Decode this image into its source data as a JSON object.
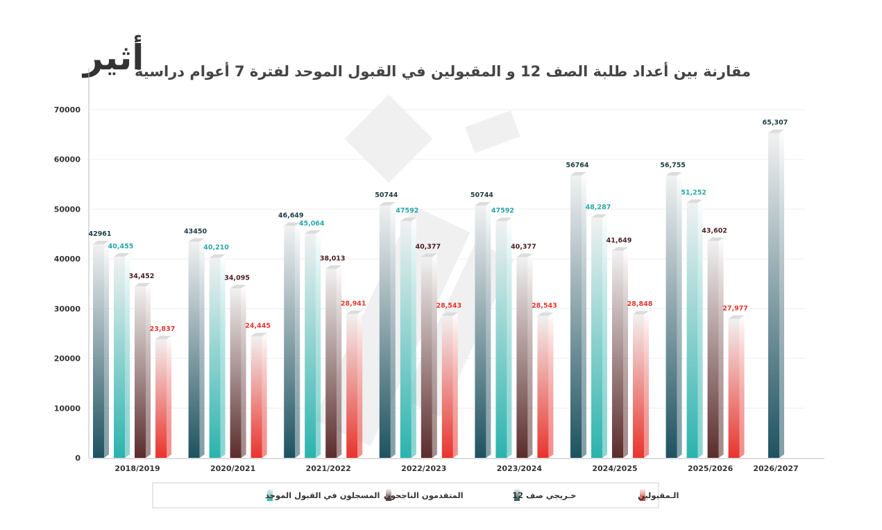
{
  "logo_text": "أثير",
  "colors": {
    "graduates": "#1e5260",
    "registered": "#2bb3ad",
    "applicants": "#5b2c2c",
    "accepted": "#e8342d"
  },
  "chart_data": {
    "type": "bar",
    "title": "مقارنة بين أعداد طلبة الصف 12 و المقبولين في القبول الموحد لفترة 7 أعوام دراسية",
    "xlabel": "",
    "ylabel": "",
    "ylim": [
      0,
      70000
    ],
    "yticks": [
      "0",
      "10000",
      "20000",
      "30000",
      "40000",
      "50000",
      "60000",
      "70000"
    ],
    "grid": true,
    "legend_position": "bottom",
    "categories": [
      "2018/2019",
      "2020/2021",
      "2021/2022",
      "2022/2023",
      "2023/2024",
      "2024/2025",
      "2025/2026",
      "2026/2027"
    ],
    "series": [
      {
        "key": "graduates",
        "name": "خـريجي صف 12",
        "values": [
          42961,
          43450,
          46649,
          50744,
          50744,
          56764,
          56755,
          65307
        ],
        "labels": [
          "42961",
          "43450",
          "46,649",
          "50744",
          "50744",
          "56764",
          "56,755",
          "65,307"
        ],
        "label_color": "#1d3c45"
      },
      {
        "key": "registered",
        "name": "المسجلون في القبول الموحد",
        "values": [
          40455,
          40210,
          45064,
          47592,
          47592,
          48287,
          51252,
          null
        ],
        "labels": [
          "40,455",
          "40,210",
          "45,064",
          "47592",
          "47592",
          "48,287",
          "51,252",
          ""
        ],
        "label_color": "#2aa6a8"
      },
      {
        "key": "applicants",
        "name": "المتقدمون الناجحون",
        "values": [
          34452,
          34095,
          38013,
          40377,
          40377,
          41649,
          43602,
          null
        ],
        "labels": [
          "34,452",
          "34,095",
          "38,013",
          "40,377",
          "40,377",
          "41,649",
          "43,602",
          ""
        ],
        "label_color": "#4a1f1f"
      },
      {
        "key": "accepted",
        "name": "الـمقبولين",
        "values": [
          23837,
          24445,
          28941,
          28543,
          28543,
          28848,
          27977,
          null
        ],
        "labels": [
          "23,837",
          "24,445",
          "28,941",
          "28,543",
          "28,543",
          "28,848",
          "27,977",
          ""
        ],
        "label_color": "#e2362e"
      }
    ],
    "legend_order": [
      "registered",
      "applicants",
      "graduates",
      "accepted"
    ]
  }
}
